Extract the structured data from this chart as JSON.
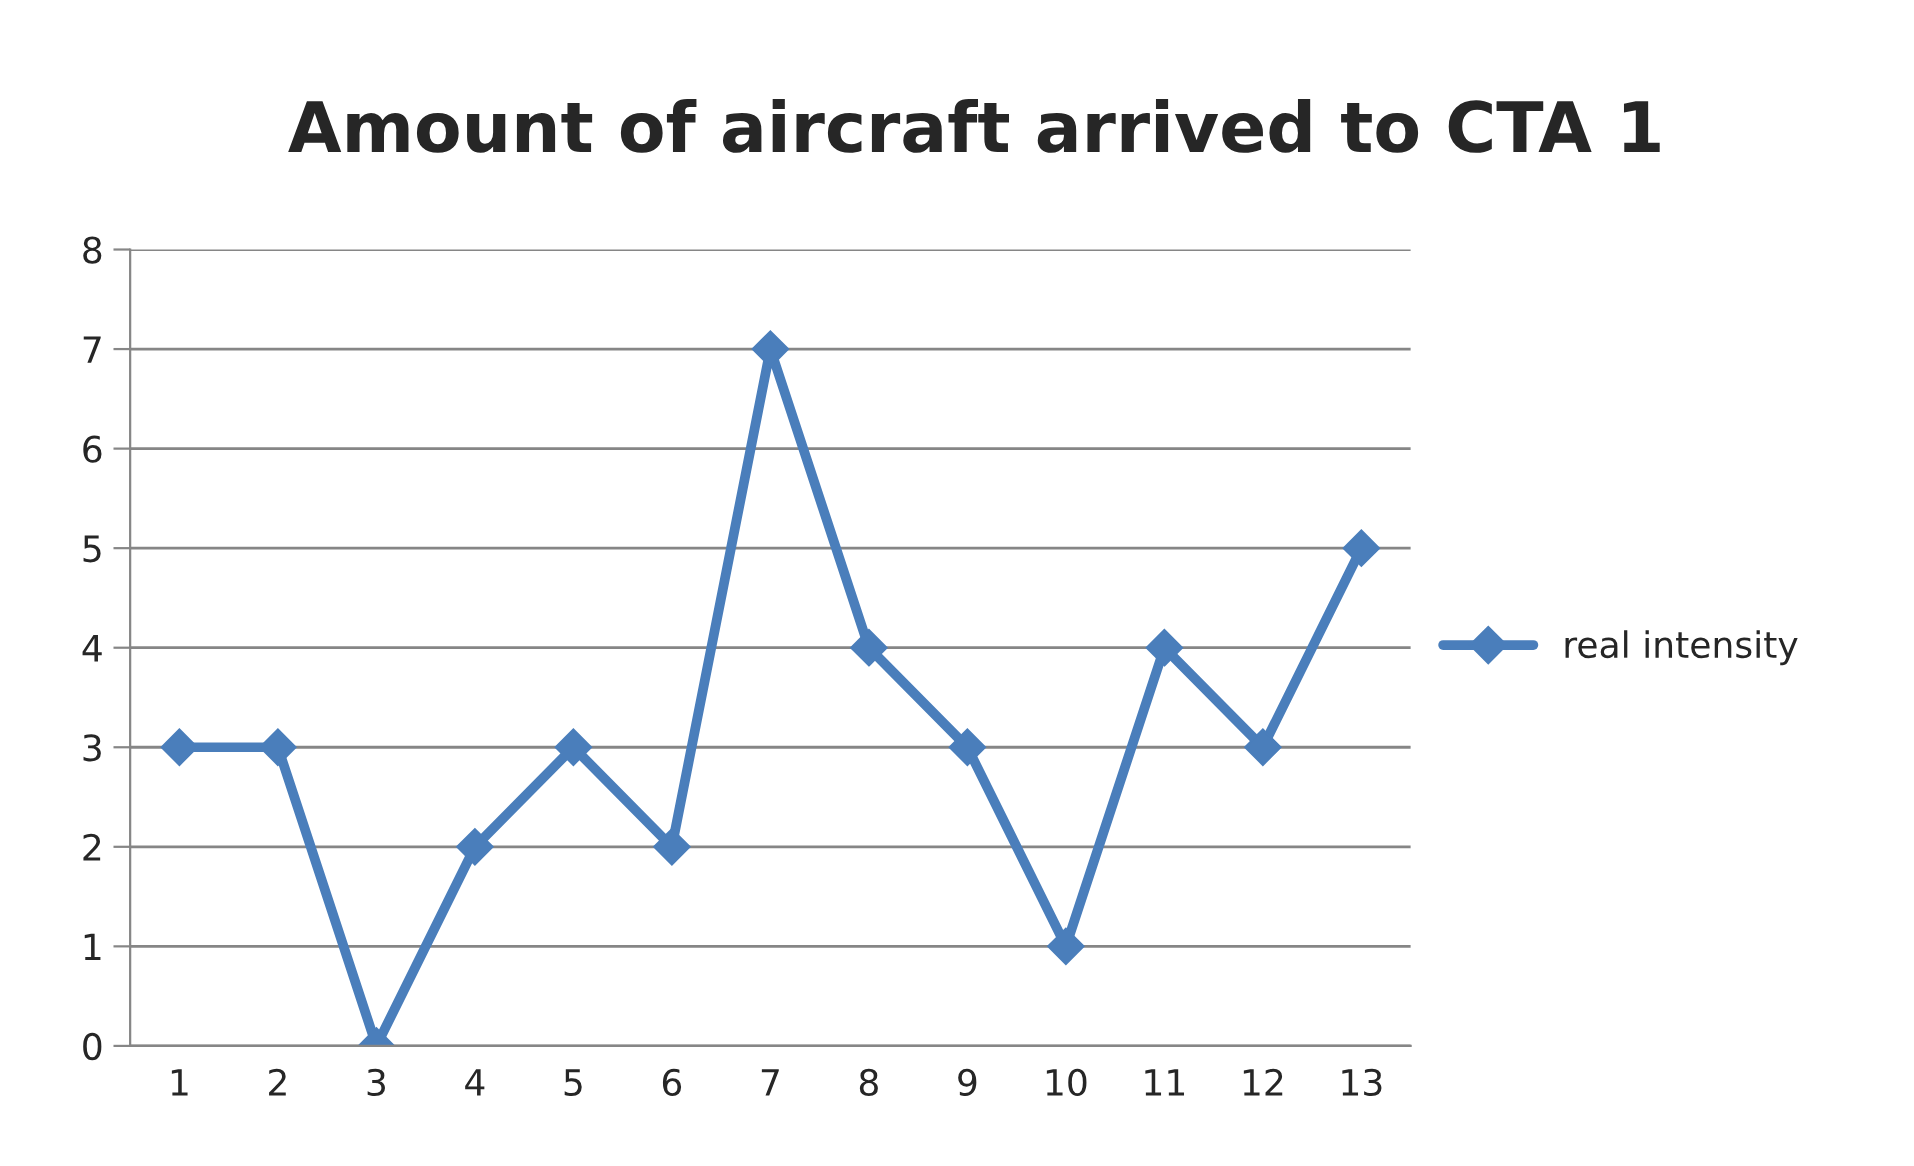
{
  "chart_data": {
    "type": "line",
    "title": "Amount of aircraft arrived to CTA 1",
    "categories": [
      "1",
      "2",
      "3",
      "4",
      "5",
      "6",
      "7",
      "8",
      "9",
      "10",
      "11",
      "12",
      "13"
    ],
    "series": [
      {
        "name": "real intensity",
        "color": "#4a7ebb",
        "values": [
          3,
          3,
          0,
          2,
          3,
          2,
          7,
          4,
          3,
          1,
          4,
          3,
          5
        ]
      }
    ],
    "ylim": [
      0,
      8
    ],
    "yticks": [
      0,
      1,
      2,
      3,
      4,
      5,
      6,
      7,
      8
    ],
    "grid": "y",
    "legend": "right",
    "marker": "diamond",
    "line_style": "solid"
  }
}
